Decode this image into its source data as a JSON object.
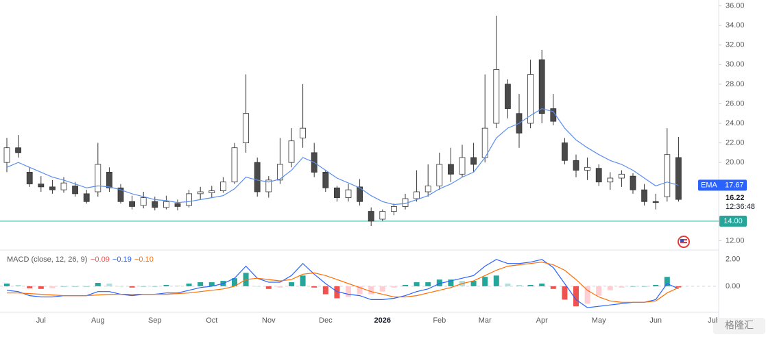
{
  "chart_data": {
    "type": "candlestick",
    "categories": [
      null,
      null,
      null,
      "Jul",
      null,
      null,
      null,
      null,
      "Aug",
      null,
      null,
      null,
      null,
      "Sep",
      null,
      null,
      null,
      null,
      "Oct",
      null,
      null,
      null,
      null,
      "Nov",
      null,
      null,
      null,
      null,
      "Dec",
      null,
      null,
      null,
      null,
      "2026",
      null,
      null,
      null,
      null,
      "Feb",
      null,
      null,
      null,
      "Mar",
      null,
      null,
      null,
      null,
      "Apr",
      null,
      null,
      null,
      null,
      "May",
      null,
      null,
      null,
      null,
      "Jun",
      null,
      null,
      null,
      null,
      "Jul"
    ],
    "open": [
      20.0,
      21.5,
      19.0,
      17.8,
      17.5,
      17.2,
      17.6,
      16.8,
      17.0,
      19.0,
      17.4,
      16.0,
      15.6,
      16.0,
      15.4,
      15.8,
      15.6,
      16.8,
      16.9,
      17.1,
      18.0,
      22.0,
      20.0,
      17.0,
      18.2,
      20.0,
      22.5,
      21.0,
      19.0,
      17.4,
      16.4,
      17.5,
      15.0,
      14.2,
      15.0,
      15.5,
      16.3,
      17.0,
      17.6,
      19.8,
      18.8,
      20.5,
      20.5,
      24.0,
      28.0,
      25.0,
      24.0,
      30.5,
      25.5,
      22.0,
      20.2,
      19.2,
      19.4,
      18.0,
      18.4,
      18.6,
      17.2,
      16.0,
      16.5,
      20.5,
      null,
      null,
      null
    ],
    "high": [
      22.5,
      22.8,
      19.5,
      18.6,
      18.2,
      18.5,
      18.0,
      17.2,
      22.0,
      19.5,
      17.8,
      16.6,
      17.0,
      16.5,
      16.6,
      16.2,
      17.2,
      17.5,
      17.6,
      18.5,
      22.0,
      29.0,
      20.5,
      18.6,
      22.5,
      23.5,
      28.0,
      22.0,
      19.2,
      17.6,
      17.8,
      18.3,
      15.4,
      15.2,
      15.8,
      16.8,
      19.2,
      19.8,
      21.0,
      21.5,
      21.8,
      22.0,
      29.0,
      35.0,
      28.5,
      27.0,
      30.5,
      31.5,
      27.0,
      22.5,
      20.8,
      20.5,
      19.8,
      19.0,
      19.2,
      18.9,
      17.8,
      16.8,
      23.5,
      22.6,
      null,
      null,
      null
    ],
    "low": [
      19.0,
      20.5,
      17.5,
      17.0,
      16.8,
      16.9,
      16.5,
      15.8,
      16.5,
      17.0,
      15.8,
      15.2,
      15.3,
      15.1,
      15.2,
      15.1,
      15.4,
      16.2,
      16.4,
      16.9,
      17.8,
      21.0,
      16.5,
      16.4,
      17.8,
      19.5,
      21.5,
      18.5,
      17.0,
      16.0,
      16.0,
      15.6,
      13.5,
      14.0,
      14.6,
      15.2,
      16.0,
      16.5,
      17.2,
      18.0,
      18.5,
      19.0,
      20.0,
      23.5,
      24.5,
      21.5,
      23.5,
      24.0,
      23.8,
      19.8,
      18.5,
      18.2,
      17.6,
      17.2,
      17.5,
      16.8,
      15.6,
      15.2,
      16.0,
      16.0,
      null,
      null,
      null
    ],
    "close": [
      21.5,
      21.0,
      17.8,
      17.5,
      17.2,
      17.9,
      16.8,
      16.0,
      19.8,
      17.4,
      16.0,
      15.5,
      16.4,
      15.4,
      16.0,
      15.5,
      16.8,
      17.0,
      17.1,
      18.0,
      21.5,
      25.0,
      17.0,
      18.2,
      19.8,
      22.2,
      23.5,
      19.0,
      17.4,
      16.4,
      17.2,
      16.0,
      14.0,
      15.0,
      15.5,
      16.3,
      17.0,
      17.6,
      19.8,
      18.8,
      20.5,
      19.8,
      23.5,
      29.5,
      25.5,
      23.0,
      29.0,
      25.0,
      24.2,
      20.2,
      19.2,
      19.5,
      18.0,
      18.4,
      18.8,
      17.2,
      16.0,
      15.9,
      20.8,
      16.22,
      null,
      null,
      null
    ],
    "close_label": "16.22",
    "countdown": "12:36:48",
    "up_color": "#ffffff",
    "down_color": "#4a4a4a",
    "wick_color": "#333333",
    "ema": {
      "name": "EMA",
      "color": "#5b8def",
      "last_label": "17.67",
      "values": [
        19.5,
        20.0,
        19.5,
        19.0,
        18.5,
        18.2,
        17.8,
        17.4,
        17.6,
        17.5,
        17.2,
        16.8,
        16.5,
        16.2,
        16.1,
        15.9,
        16.0,
        16.2,
        16.4,
        16.6,
        17.3,
        18.5,
        18.2,
        18.0,
        18.3,
        19.2,
        20.5,
        20.0,
        19.2,
        18.4,
        17.9,
        17.4,
        16.6,
        16.0,
        15.7,
        15.8,
        16.2,
        16.6,
        17.3,
        17.8,
        18.5,
        19.0,
        20.5,
        22.5,
        23.5,
        24.0,
        24.8,
        25.5,
        25.2,
        23.5,
        22.3,
        21.5,
        20.8,
        20.2,
        19.8,
        19.2,
        18.4,
        17.6,
        18.0,
        17.67,
        null,
        null,
        null
      ]
    },
    "hline": {
      "value": 14,
      "label": "14.00",
      "color": "#26a69a"
    },
    "ylim": [
      11.4,
      36.6
    ],
    "yticks": [
      {
        "value": 12,
        "label": "12.00"
      },
      {
        "value": 20,
        "label": "20.00"
      },
      {
        "value": 22,
        "label": "22.00"
      },
      {
        "value": 24,
        "label": "24.00"
      },
      {
        "value": 26,
        "label": "26.00"
      },
      {
        "value": 28,
        "label": "28.00"
      },
      {
        "value": 30,
        "label": "30.00"
      },
      {
        "value": 32,
        "label": "32.00"
      },
      {
        "value": 34,
        "label": "34.00"
      },
      {
        "value": 36,
        "label": "36.00"
      }
    ],
    "macd": {
      "title": "MACD (close, 12, 26, 9)",
      "legend_labels": [
        "−0.09",
        "−0.19",
        "−0.10"
      ],
      "ylim": [
        -1.9,
        2.35
      ],
      "yticks": [
        {
          "value": 0,
          "label": "0.00"
        },
        {
          "value": 2,
          "label": "2.00"
        }
      ],
      "histogram": {
        "colors": [
          "#26a69a",
          "#b2dfdb",
          "#ffcdd2",
          "#ef5350"
        ],
        "values": [
          0.2,
          0.1,
          -0.15,
          -0.2,
          -0.15,
          0.0,
          0.0,
          0.0,
          0.25,
          0.2,
          0.0,
          -0.1,
          0.0,
          0.0,
          0.1,
          0.05,
          0.2,
          0.3,
          0.3,
          0.4,
          0.6,
          1.0,
          0.0,
          -0.2,
          -0.1,
          0.3,
          0.8,
          -0.1,
          -0.6,
          -0.9,
          -0.8,
          -0.6,
          -0.6,
          -0.4,
          -0.1,
          0.1,
          0.3,
          0.3,
          0.5,
          0.5,
          0.4,
          0.4,
          0.7,
          0.8,
          0.2,
          0.1,
          0.1,
          0.2,
          -0.2,
          -1.0,
          -1.5,
          -1.3,
          -0.7,
          -0.3,
          -0.1,
          0.0,
          0.0,
          0.1,
          0.7,
          -0.09,
          null,
          null,
          null
        ]
      },
      "series": [
        {
          "color": "#2962ff",
          "values": [
            -0.3,
            -0.4,
            -0.7,
            -0.8,
            -0.8,
            -0.7,
            -0.7,
            -0.7,
            -0.4,
            -0.4,
            -0.6,
            -0.7,
            -0.6,
            -0.6,
            -0.5,
            -0.5,
            -0.3,
            -0.1,
            0.0,
            0.2,
            0.6,
            1.5,
            0.6,
            0.3,
            0.3,
            0.8,
            1.7,
            0.9,
            0.2,
            -0.4,
            -0.6,
            -0.7,
            -1.0,
            -1.0,
            -0.9,
            -0.7,
            -0.4,
            -0.2,
            0.2,
            0.4,
            0.6,
            0.8,
            1.5,
            2.0,
            1.7,
            1.7,
            1.8,
            2.0,
            1.4,
            0.2,
            -1.0,
            -1.6,
            -1.5,
            -1.4,
            -1.3,
            -1.2,
            -1.2,
            -1.0,
            0.2,
            -0.19,
            null,
            null,
            null
          ]
        },
        {
          "color": "#ff6d00",
          "values": [
            -0.5,
            -0.5,
            -0.55,
            -0.6,
            -0.65,
            -0.7,
            -0.7,
            -0.7,
            -0.65,
            -0.6,
            -0.6,
            -0.6,
            -0.6,
            -0.6,
            -0.6,
            -0.55,
            -0.5,
            -0.4,
            -0.3,
            -0.2,
            0.0,
            0.5,
            0.6,
            0.5,
            0.4,
            0.5,
            0.9,
            1.0,
            0.8,
            0.5,
            0.2,
            -0.1,
            -0.4,
            -0.6,
            -0.8,
            -0.8,
            -0.7,
            -0.5,
            -0.3,
            -0.1,
            0.2,
            0.4,
            0.8,
            1.2,
            1.5,
            1.6,
            1.7,
            1.8,
            1.6,
            1.2,
            0.5,
            -0.3,
            -0.8,
            -1.1,
            -1.2,
            -1.2,
            -1.2,
            -1.1,
            -0.5,
            -0.1,
            null,
            null,
            null
          ]
        }
      ]
    },
    "watermark": "格隆汇"
  }
}
